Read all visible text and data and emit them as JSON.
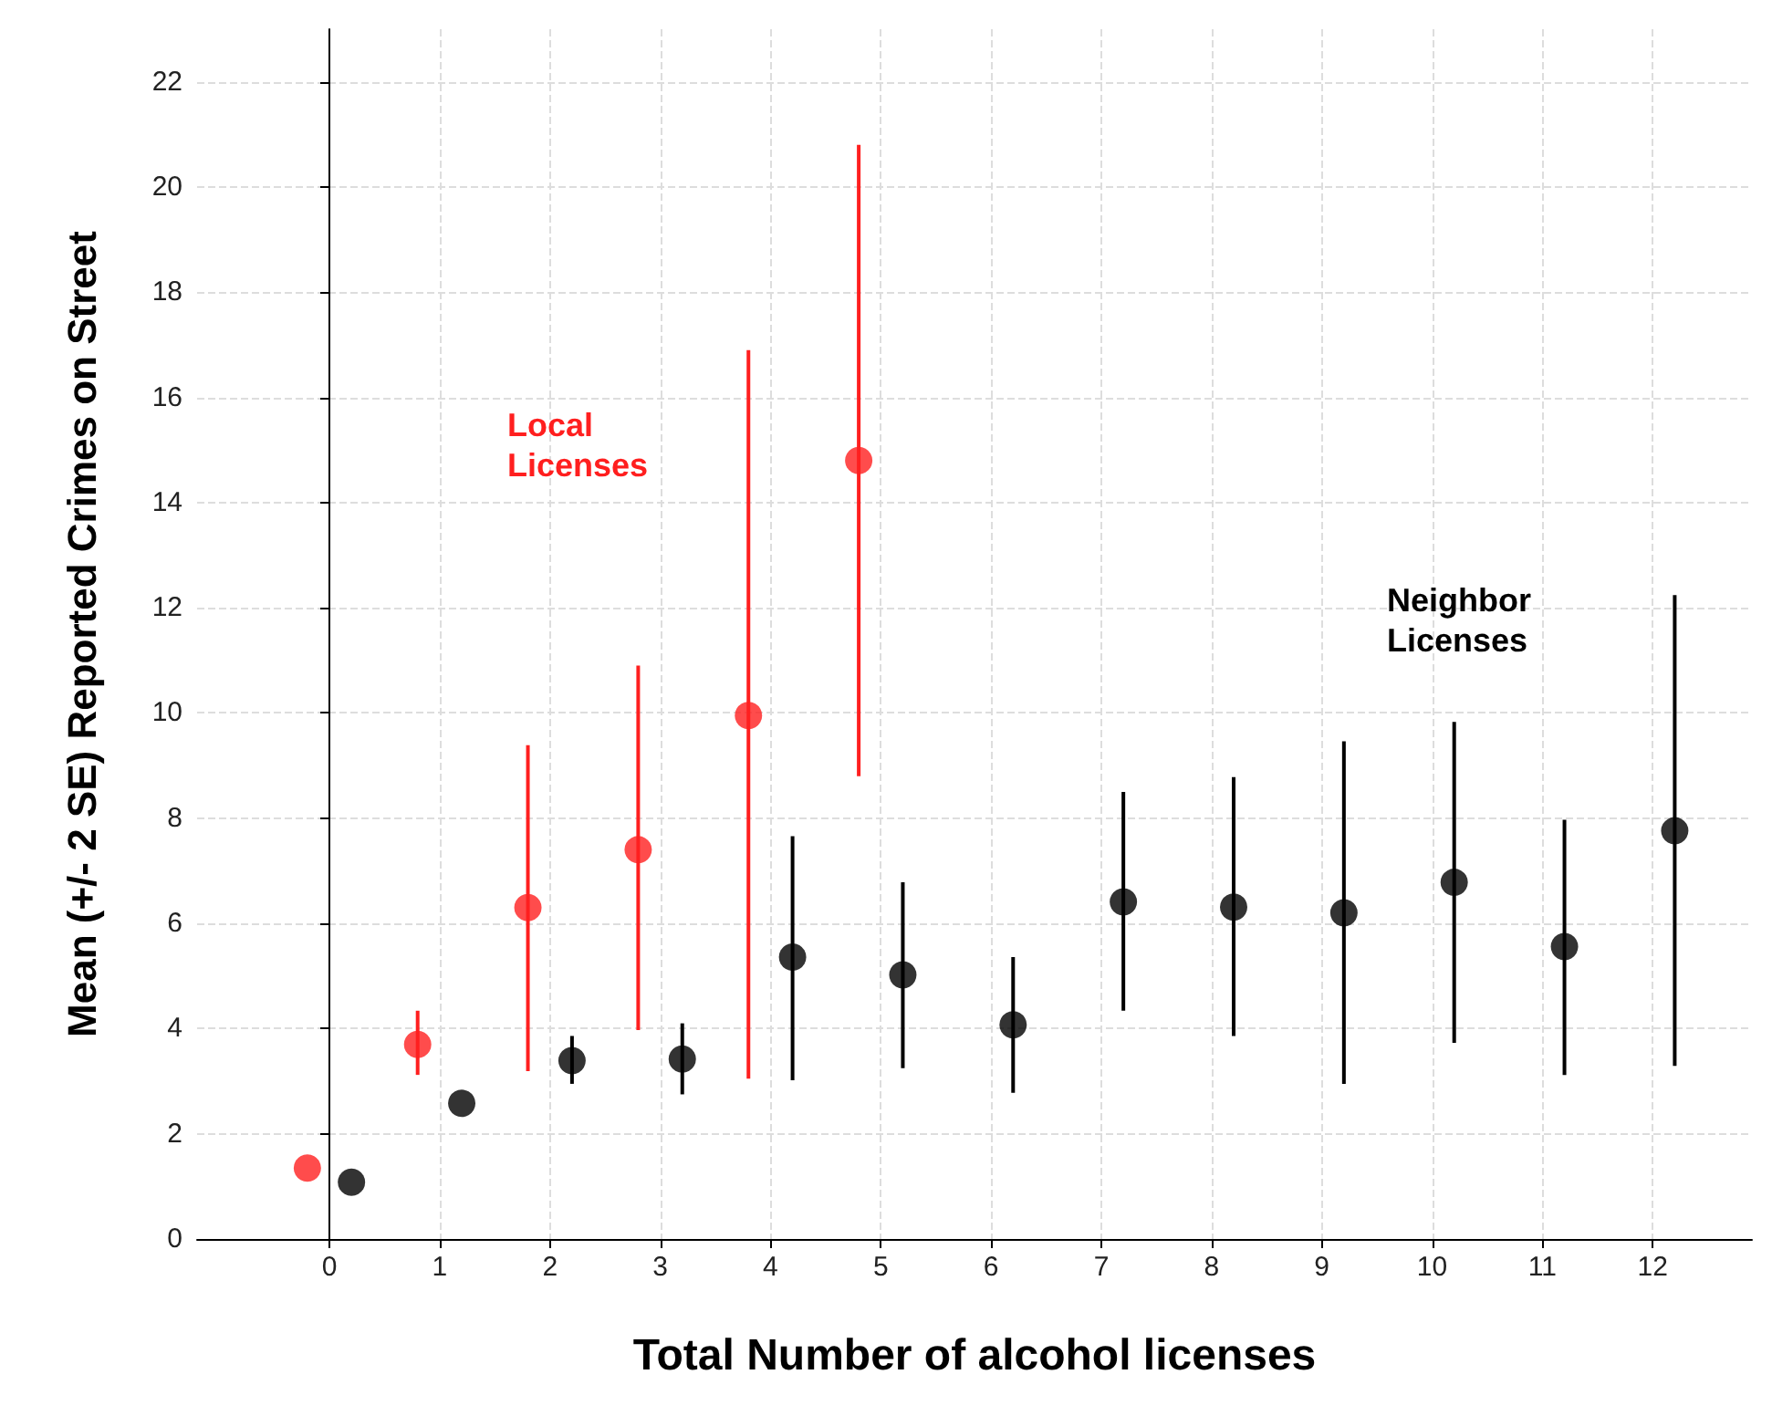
{
  "chart_data": {
    "type": "scatter",
    "xlabel": "Total Number of alcohol licenses",
    "ylabel": "Mean (+/- 2 SE) Reported Crimes on Street",
    "xlim": [
      -1.2,
      12.9
    ],
    "xticks": [
      0,
      1,
      2,
      3,
      4,
      5,
      6,
      7,
      8,
      9,
      10,
      11,
      12
    ],
    "ylim": [
      0,
      23
    ],
    "yticks": [
      0,
      2,
      4,
      6,
      8,
      10,
      12,
      14,
      16,
      18,
      20,
      22
    ],
    "grid": true,
    "marker": "circle",
    "series": [
      {
        "name": "Local Licenses",
        "color": "#ff1f1f",
        "x": [
          -0.2,
          0.8,
          1.8,
          2.8,
          3.8,
          4.8
        ],
        "values": [
          1.35,
          3.7,
          6.3,
          7.4,
          9.95,
          14.8
        ],
        "errors": [
          null,
          [
            3.12,
            4.34
          ],
          [
            3.19,
            9.39
          ],
          [
            3.97,
            10.9
          ],
          [
            3.05,
            16.9
          ],
          [
            8.8,
            20.8
          ]
        ]
      },
      {
        "name": "Neighbor Licenses",
        "color": "#000000",
        "x": [
          0.2,
          1.2,
          2.2,
          3.2,
          4.2,
          5.2,
          6.2,
          7.2,
          8.2,
          9.2,
          10.2,
          11.2,
          12.2
        ],
        "values": [
          1.08,
          2.58,
          3.39,
          3.42,
          5.36,
          5.02,
          4.07,
          6.41,
          6.31,
          6.2,
          6.78,
          5.56,
          7.76
        ],
        "errors": [
          null,
          null,
          [
            2.95,
            3.86
          ],
          [
            2.75,
            4.1
          ],
          [
            3.02,
            7.66
          ],
          [
            3.25,
            6.78
          ],
          [
            2.78,
            5.36
          ],
          [
            4.34,
            8.5
          ],
          [
            3.86,
            8.78
          ],
          [
            2.95,
            9.46
          ],
          [
            3.73,
            9.83
          ],
          [
            3.12,
            7.97
          ],
          [
            3.29,
            12.24
          ]
        ]
      }
    ]
  }
}
